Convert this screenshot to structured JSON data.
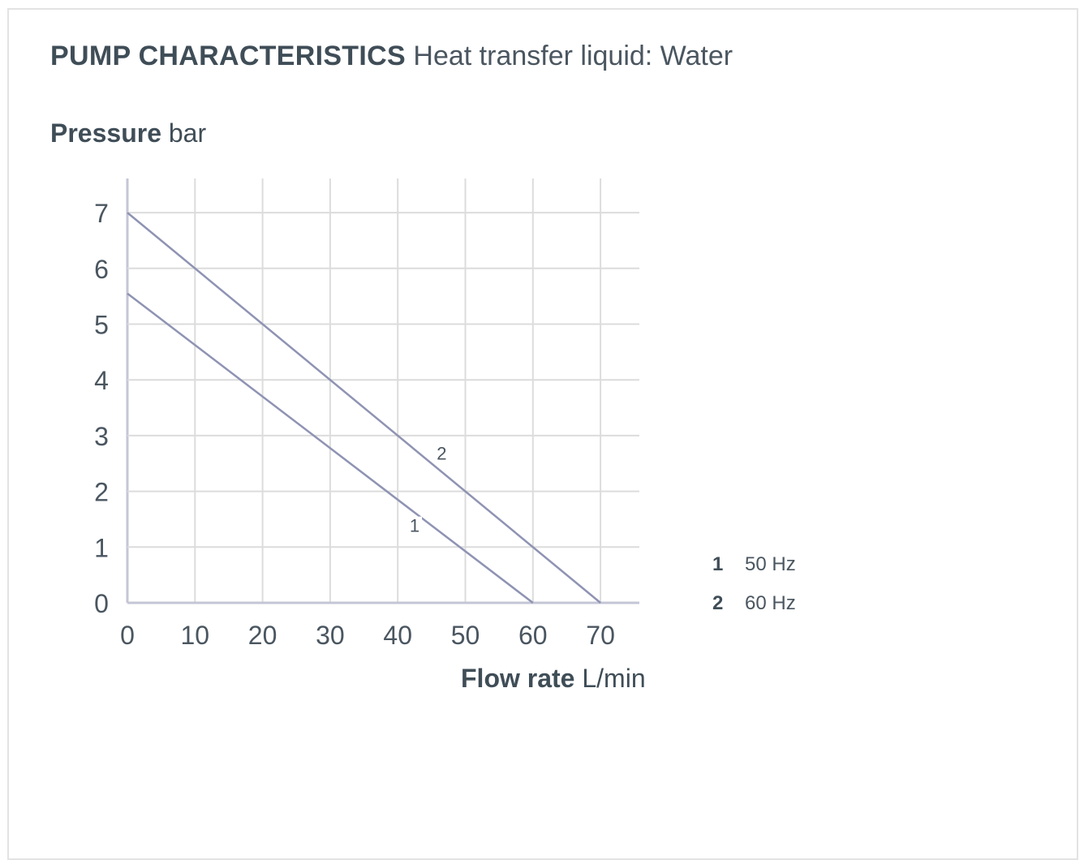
{
  "chart_data": {
    "type": "line",
    "title": "PUMP CHARACTERISTICS",
    "subtitle": "Heat transfer liquid: Water",
    "ylabel": "Pressure",
    "yunit": "bar",
    "xlabel": "Flow rate",
    "xunit": "L/min",
    "xlim": [
      0,
      75
    ],
    "ylim": [
      0,
      7.6
    ],
    "xticks": [
      0,
      10,
      20,
      30,
      40,
      50,
      60,
      70
    ],
    "yticks": [
      0,
      1,
      2,
      3,
      4,
      5,
      6,
      7
    ],
    "grid": true,
    "legend_position": "right",
    "series": [
      {
        "name": "50 Hz",
        "label": "1",
        "x": [
          0,
          60
        ],
        "y": [
          5.55,
          0
        ]
      },
      {
        "name": "60 Hz",
        "label": "2",
        "x": [
          0,
          70
        ],
        "y": [
          7,
          0
        ]
      }
    ],
    "curve_labels": [
      {
        "text": "1",
        "x": 42.5,
        "y": 1.3
      },
      {
        "text": "2",
        "x": 46.5,
        "y": 2.6
      }
    ],
    "line_color": "#8f93b3",
    "grid_color": "#dcdcdc",
    "axis_color": "#c4c6d6"
  }
}
